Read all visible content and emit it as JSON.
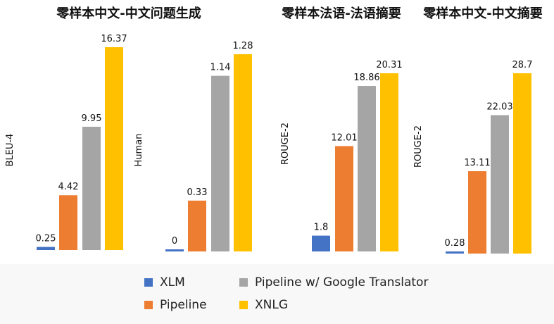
{
  "colors": {
    "XLM": "#4472c4",
    "Pipeline": "#ed7d31",
    "Pipeline w/ Google Translator": "#a5a5a5",
    "XNLG": "#ffc000"
  },
  "legend": {
    "items": [
      {
        "label": "XLM",
        "series": "XLM"
      },
      {
        "label": "Pipeline w/ Google Translator",
        "series": "Pipeline w/ Google Translator"
      },
      {
        "label": "Pipeline",
        "series": "Pipeline"
      },
      {
        "label": "XNLG",
        "series": "XNLG"
      }
    ]
  },
  "chart_data": [
    {
      "type": "bar",
      "title": "零样本中文-中文问题生成",
      "ylabel": "BLEU-4",
      "xlabel": "",
      "series": [
        {
          "name": "XLM",
          "value": 0.25,
          "label": "0.25"
        },
        {
          "name": "Pipeline",
          "value": 4.42,
          "label": "4.42"
        },
        {
          "name": "Pipeline w/ Google Translator",
          "value": 9.95,
          "label": "9.95"
        },
        {
          "name": "XNLG",
          "value": 16.37,
          "label": "16.37"
        }
      ],
      "ylim": [
        0,
        16.37
      ],
      "grid": false
    },
    {
      "type": "bar",
      "title": "",
      "ylabel": "Human",
      "xlabel": "",
      "series": [
        {
          "name": "XLM",
          "value": 0,
          "label": "0"
        },
        {
          "name": "Pipeline",
          "value": 0.33,
          "label": "0.33"
        },
        {
          "name": "Pipeline w/ Google Translator",
          "value": 1.14,
          "label": "1.14"
        },
        {
          "name": "XNLG",
          "value": 1.28,
          "label": "1.28"
        }
      ],
      "ylim": [
        0,
        1.28
      ],
      "grid": false
    },
    {
      "type": "bar",
      "title": "零样本法语-法语摘要",
      "ylabel": "ROUGE-2",
      "xlabel": "",
      "series": [
        {
          "name": "XLM",
          "value": 1.8,
          "label": "1.8"
        },
        {
          "name": "Pipeline",
          "value": 12.01,
          "label": "12.01"
        },
        {
          "name": "Pipeline w/ Google Translator",
          "value": 18.86,
          "label": "18.86"
        },
        {
          "name": "XNLG",
          "value": 20.31,
          "label": "20.31"
        }
      ],
      "ylim": [
        0,
        20.31
      ],
      "grid": false
    },
    {
      "type": "bar",
      "title": "零样本中文-中文摘要",
      "ylabel": "ROUGE-2",
      "xlabel": "",
      "series": [
        {
          "name": "XLM",
          "value": 0.28,
          "label": "0.28"
        },
        {
          "name": "Pipeline",
          "value": 13.11,
          "label": "13.11"
        },
        {
          "name": "Pipeline w/ Google Translator",
          "value": 22.03,
          "label": "22.03"
        },
        {
          "name": "XNLG",
          "value": 28.7,
          "label": "28.7"
        }
      ],
      "ylim": [
        0,
        28.7
      ],
      "grid": false
    }
  ]
}
